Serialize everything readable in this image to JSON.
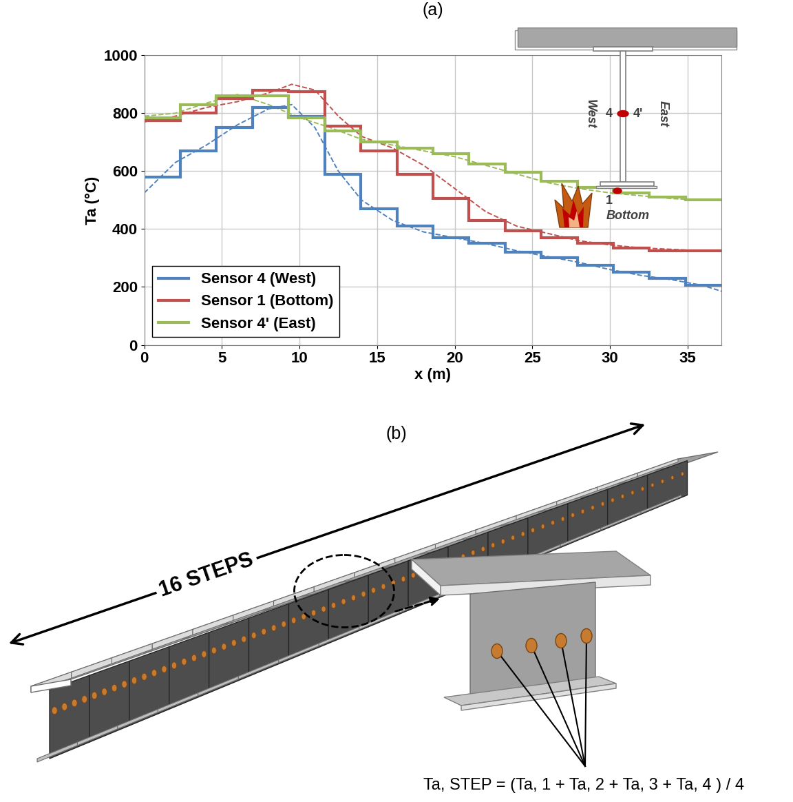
{
  "chart_data": {
    "type": "line",
    "title": "(a)",
    "x_label": "x (m)",
    "y_label": "Ta (°C)",
    "xlim": [
      0,
      37.2
    ],
    "xticks": [
      0,
      5,
      10,
      15,
      20,
      25,
      30,
      35
    ],
    "ylim": [
      0,
      1000
    ],
    "yticks": [
      0,
      200,
      400,
      600,
      800,
      1000
    ],
    "grid": true,
    "legend": "lower left",
    "series": [
      {
        "name": "Sensor 4 (West)",
        "color": "#4f81bd",
        "type": "step",
        "bins": [
          0,
          2.325,
          4.65,
          6.975,
          9.3,
          11.625,
          13.95,
          16.275,
          18.6,
          20.925,
          23.25,
          25.575,
          27.9,
          30.225,
          32.55,
          34.875,
          37.2
        ],
        "values": [
          580,
          670,
          750,
          820,
          790,
          590,
          470,
          410,
          370,
          350,
          320,
          300,
          275,
          250,
          230,
          205
        ]
      },
      {
        "name": "Sensor 1 (Bottom)",
        "color": "#c0504d",
        "type": "step",
        "bins": [
          0,
          2.325,
          4.65,
          6.975,
          9.3,
          11.625,
          13.95,
          16.275,
          18.6,
          20.925,
          23.25,
          25.575,
          27.9,
          30.225,
          32.55,
          34.875,
          37.2
        ],
        "values": [
          775,
          800,
          850,
          880,
          875,
          755,
          670,
          590,
          505,
          430,
          395,
          370,
          350,
          335,
          325,
          325
        ]
      },
      {
        "name": "Sensor 4' (East)",
        "color": "#9bbb59",
        "type": "step",
        "bins": [
          0,
          2.325,
          4.65,
          6.975,
          9.3,
          11.625,
          13.95,
          16.275,
          18.6,
          20.925,
          23.25,
          25.575,
          27.9,
          30.225,
          32.55,
          34.875,
          37.2
        ],
        "values": [
          785,
          830,
          860,
          860,
          785,
          740,
          700,
          680,
          660,
          625,
          595,
          565,
          545,
          525,
          510,
          500
        ]
      },
      {
        "color": "#4f81bd",
        "type": "line",
        "line_style": "dashed",
        "x": [
          0,
          2,
          4,
          6,
          8,
          9.5,
          11,
          12.5,
          14,
          16,
          18,
          20,
          22,
          24,
          26,
          28,
          30,
          32,
          34,
          36,
          37.2
        ],
        "values": [
          525,
          630,
          690,
          760,
          815,
          830,
          750,
          600,
          500,
          430,
          390,
          370,
          350,
          325,
          305,
          285,
          260,
          240,
          225,
          205,
          185
        ]
      },
      {
        "color": "#c0504d",
        "type": "line",
        "line_style": "dashed",
        "x": [
          0,
          2,
          4,
          6,
          8,
          9.5,
          11,
          12.5,
          14,
          16,
          18,
          20,
          22,
          24,
          26,
          28,
          30,
          32,
          34,
          36,
          37.2
        ],
        "values": [
          770,
          790,
          820,
          840,
          870,
          900,
          880,
          790,
          720,
          680,
          620,
          540,
          460,
          410,
          385,
          360,
          345,
          335,
          330,
          325,
          323
        ]
      },
      {
        "color": "#9bbb59",
        "type": "line",
        "line_style": "dashed",
        "x": [
          0,
          2,
          4,
          6,
          8,
          10,
          12,
          14,
          16,
          18,
          20,
          22,
          24,
          26,
          28,
          30,
          32,
          34,
          36,
          37.2
        ],
        "values": [
          790,
          800,
          835,
          865,
          830,
          785,
          750,
          710,
          690,
          670,
          650,
          620,
          590,
          560,
          540,
          525,
          515,
          505,
          500,
          500
        ]
      }
    ],
    "annotations": [
      "West",
      "4",
      "4'",
      "East",
      "1",
      "Bottom"
    ]
  },
  "diagram": {
    "title": "(b)",
    "label": "16 STEPS",
    "formula": "Ta, STEP = (Ta, 1 + Ta, 2 + Ta, 3 + Ta, 4 ) / 4"
  }
}
